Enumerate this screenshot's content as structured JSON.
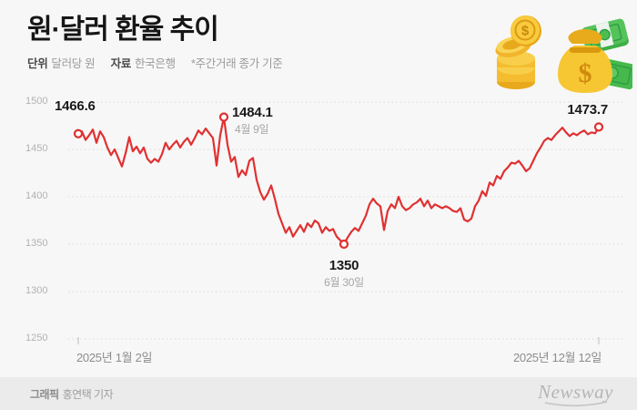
{
  "header": {
    "title": "원·달러 환율 추이",
    "unit_label": "단위",
    "unit_value": "달러당 원",
    "source_label": "자료",
    "source_value": "한국은행",
    "note": "*주간거래 종가 기준"
  },
  "chart_data": {
    "type": "line",
    "title": "원·달러 환율 추이",
    "ylabel": "달러당 원",
    "source": "한국은행",
    "note": "주간거래 종가 기준",
    "line_color": "#e03131",
    "grid": "dotted horizontal",
    "legend": "none",
    "ylim": [
      1250,
      1500
    ],
    "y_ticks": [
      "1500",
      "1450",
      "1400",
      "1350",
      "1300",
      "1250"
    ],
    "x_start_label": "2025년 1월 2일",
    "x_end_label": "2025년 12월 12일",
    "values": [
      1466.6,
      1469,
      1460,
      1465,
      1471,
      1457,
      1469,
      1463,
      1452,
      1444,
      1450,
      1441,
      1432,
      1446,
      1463,
      1448,
      1453,
      1446,
      1452,
      1440,
      1436,
      1440,
      1437,
      1445,
      1457,
      1450,
      1455,
      1459,
      1452,
      1458,
      1462,
      1455,
      1462,
      1470,
      1466,
      1472,
      1467,
      1462,
      1433,
      1465,
      1484.1,
      1455,
      1437,
      1442,
      1421,
      1428,
      1423,
      1438,
      1441,
      1418,
      1405,
      1397,
      1403,
      1412,
      1398,
      1382,
      1372,
      1362,
      1368,
      1358,
      1364,
      1370,
      1363,
      1372,
      1368,
      1375,
      1372,
      1362,
      1368,
      1364,
      1366,
      1358,
      1354,
      1350,
      1357,
      1363,
      1367,
      1364,
      1372,
      1380,
      1392,
      1398,
      1393,
      1390,
      1365,
      1385,
      1392,
      1388,
      1400,
      1390,
      1386,
      1388,
      1392,
      1394,
      1398,
      1390,
      1396,
      1388,
      1392,
      1390,
      1388,
      1390,
      1388,
      1385,
      1384,
      1388,
      1376,
      1374,
      1377,
      1390,
      1396,
      1406,
      1401,
      1415,
      1412,
      1422,
      1419,
      1427,
      1431,
      1436,
      1435,
      1438,
      1433,
      1427,
      1430,
      1438,
      1446,
      1452,
      1459,
      1462,
      1460,
      1465,
      1469,
      1473,
      1468,
      1464,
      1467,
      1465,
      1468,
      1470,
      1466,
      1468,
      1467,
      1473.7
    ],
    "key_points": [
      {
        "index": 0,
        "value": 1466.6,
        "label": "1466.6",
        "date": "2025년 1월 2일"
      },
      {
        "index": 40,
        "value": 1484.1,
        "label": "1484.1",
        "date": "4월 9일"
      },
      {
        "index": 73,
        "value": 1350,
        "label": "1350",
        "date": "6월 30일"
      },
      {
        "index": 143,
        "value": 1473.7,
        "label": "1473.7",
        "date": "2025년 12월 12일"
      }
    ]
  },
  "footer": {
    "credit_label": "그래픽",
    "credit_value": "홍연택 기자",
    "logo": "Newsway"
  }
}
